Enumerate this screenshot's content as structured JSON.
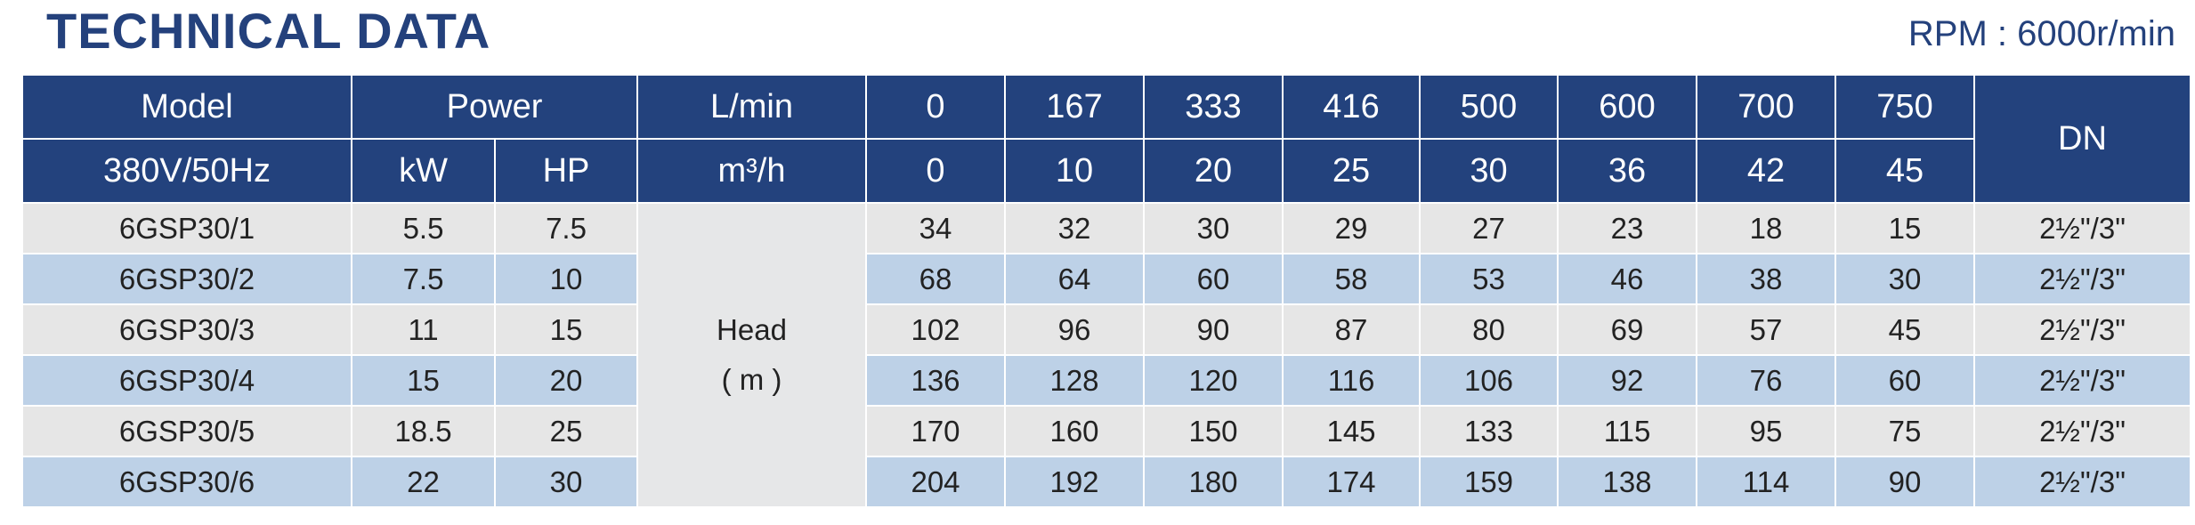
{
  "header": {
    "title": "TECHNICAL DATA",
    "rpm": "RPM : 6000r/min"
  },
  "table": {
    "header_row1": [
      "Model",
      "Power",
      "L/min",
      "0",
      "167",
      "333",
      "416",
      "500",
      "600",
      "700",
      "750",
      "DN"
    ],
    "header_row2": [
      "380V/50Hz",
      "kW",
      "HP",
      "m³/h",
      "0",
      "10",
      "20",
      "25",
      "30",
      "36",
      "42",
      "45"
    ],
    "head_label": [
      "Head",
      "( m )"
    ],
    "rows": [
      [
        "6GSP30/1",
        5.5,
        7.5,
        34,
        32,
        30,
        29,
        27,
        23,
        18,
        15,
        "2½\"/3\""
      ],
      [
        "6GSP30/2",
        7.5,
        10,
        68,
        64,
        60,
        58,
        53,
        46,
        38,
        30,
        "2½\"/3\""
      ],
      [
        "6GSP30/3",
        11,
        15,
        102,
        96,
        90,
        87,
        80,
        69,
        57,
        45,
        "2½\"/3\""
      ],
      [
        "6GSP30/4",
        15,
        20,
        136,
        128,
        120,
        116,
        106,
        92,
        76,
        60,
        "2½\"/3\""
      ],
      [
        "6GSP30/5",
        18.5,
        25,
        170,
        160,
        150,
        145,
        133,
        115,
        95,
        75,
        "2½\"/3\""
      ],
      [
        "6GSP30/6",
        22,
        30,
        204,
        192,
        180,
        174,
        159,
        138,
        114,
        90,
        "2½\"/3\""
      ]
    ]
  }
}
